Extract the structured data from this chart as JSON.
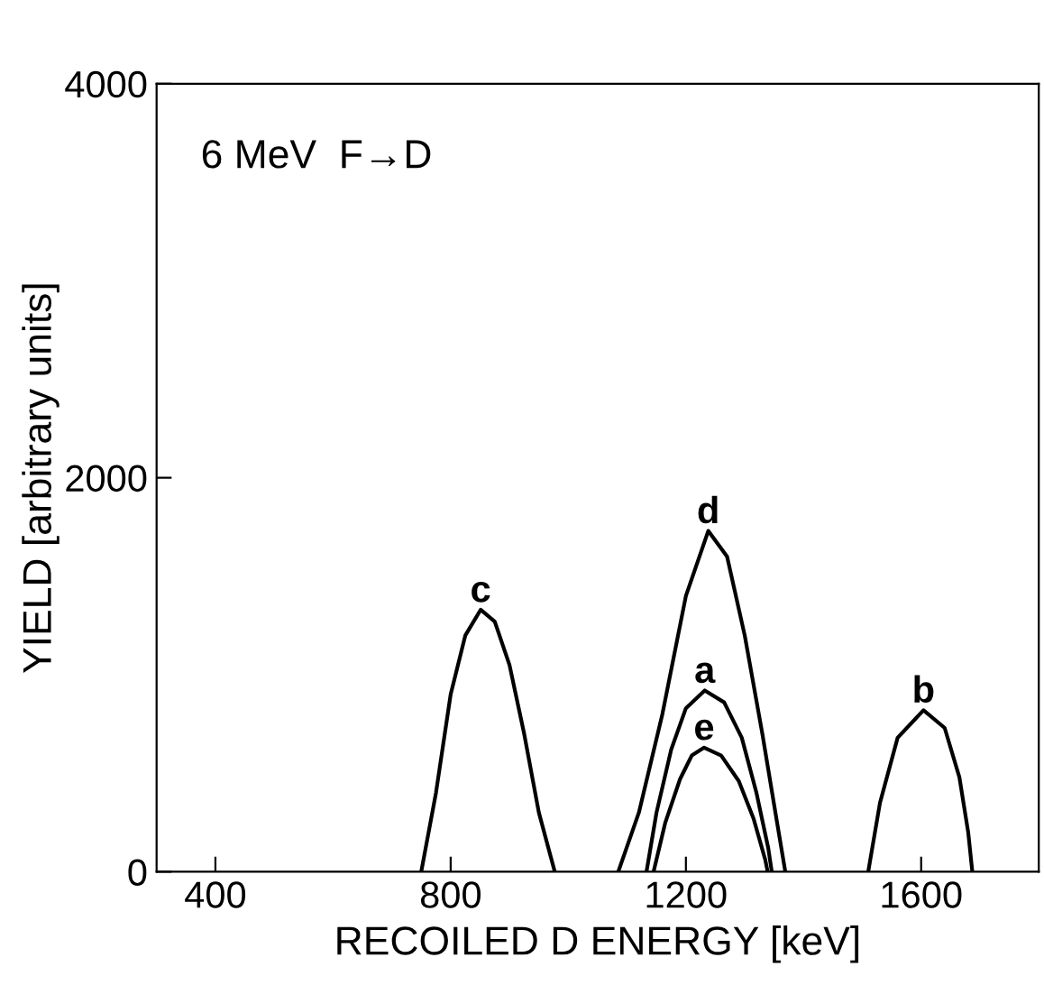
{
  "chart_data": {
    "type": "line",
    "xlabel": "RECOILED D ENERGY [keV]",
    "ylabel": "YIELD [arbitrary units]",
    "annotations": [
      "6 MeV  F→D"
    ],
    "xlim": [
      300,
      1800
    ],
    "xticks": [
      400,
      800,
      1200,
      1600
    ],
    "ylim": [
      0,
      4000
    ],
    "yticks": [
      0,
      2000,
      4000
    ],
    "grid": false,
    "legend": false,
    "marker": "none",
    "line_style": "solid",
    "series": [
      {
        "name": "c",
        "color": "#000000",
        "x": [
          750,
          775,
          800,
          825,
          851,
          875,
          900,
          925,
          950,
          977
        ],
        "values": [
          0,
          400,
          900,
          1200,
          1330,
          1270,
          1050,
          700,
          300,
          0
        ]
      },
      {
        "name": "d",
        "color": "#000000",
        "x": [
          1085,
          1120,
          1160,
          1200,
          1238,
          1270,
          1300,
          1330,
          1355,
          1369
        ],
        "values": [
          0,
          300,
          800,
          1400,
          1730,
          1600,
          1200,
          700,
          250,
          0
        ]
      },
      {
        "name": "a",
        "color": "#000000",
        "x": [
          1133,
          1150,
          1175,
          1200,
          1232,
          1265,
          1295,
          1320,
          1340,
          1346
        ],
        "values": [
          0,
          300,
          620,
          830,
          920,
          860,
          680,
          400,
          120,
          0
        ]
      },
      {
        "name": "e",
        "color": "#000000",
        "x": [
          1145,
          1165,
          1190,
          1210,
          1231,
          1260,
          1290,
          1315,
          1335,
          1339
        ],
        "values": [
          0,
          250,
          470,
          590,
          630,
          590,
          460,
          270,
          60,
          0
        ]
      },
      {
        "name": "b",
        "color": "#000000",
        "x": [
          1510,
          1530,
          1560,
          1604,
          1640,
          1665,
          1680,
          1687
        ],
        "values": [
          0,
          350,
          680,
          820,
          730,
          480,
          200,
          0
        ]
      }
    ]
  }
}
